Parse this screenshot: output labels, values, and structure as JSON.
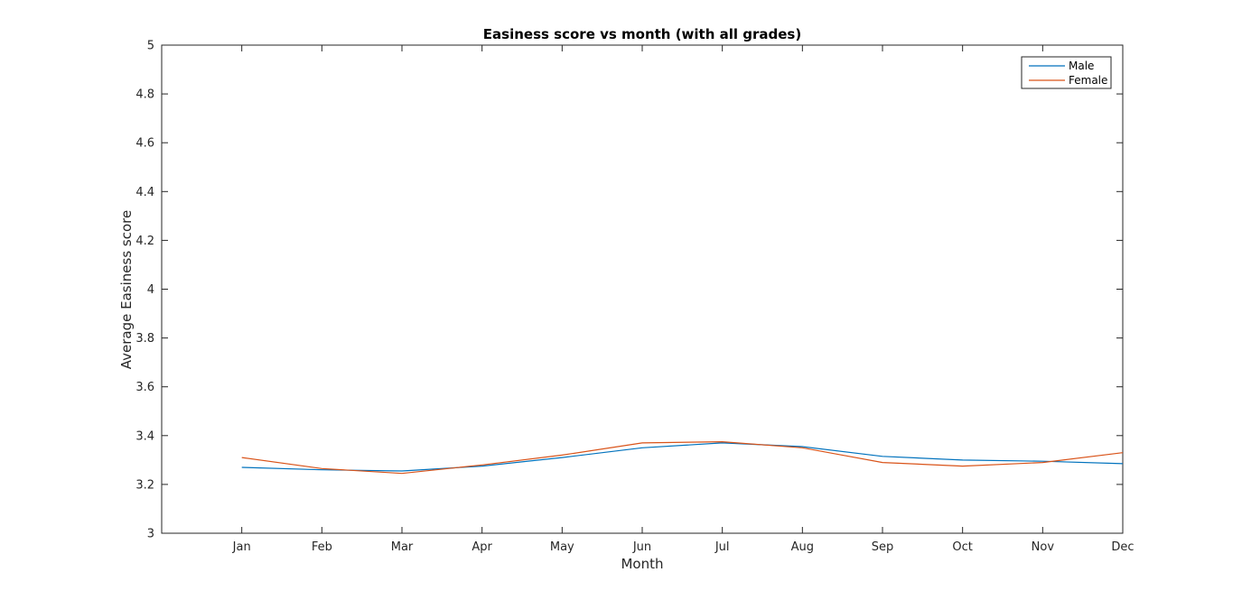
{
  "chart_data": {
    "type": "line",
    "title": "Easiness score vs month (with all grades)",
    "xlabel": "Month",
    "ylabel": "Average Easiness score",
    "categories": [
      "Jan",
      "Feb",
      "Mar",
      "Apr",
      "May",
      "Jun",
      "Jul",
      "Aug",
      "Sep",
      "Oct",
      "Nov",
      "Dec"
    ],
    "xlim": [
      0,
      12
    ],
    "ylim": [
      3,
      5
    ],
    "yticks": [
      "3",
      "3.2",
      "3.4",
      "3.6",
      "3.8",
      "4",
      "4.2",
      "4.4",
      "4.6",
      "4.8",
      "5"
    ],
    "grid": false,
    "legend_position": "top-right",
    "series": [
      {
        "name": "Male",
        "color": "#0072BD",
        "values": [
          3.27,
          3.26,
          3.255,
          3.275,
          3.31,
          3.35,
          3.37,
          3.355,
          3.315,
          3.3,
          3.295,
          3.285
        ]
      },
      {
        "name": "Female",
        "color": "#D95319",
        "values": [
          3.31,
          3.265,
          3.245,
          3.28,
          3.32,
          3.37,
          3.375,
          3.35,
          3.29,
          3.275,
          3.29,
          3.33
        ]
      }
    ]
  }
}
